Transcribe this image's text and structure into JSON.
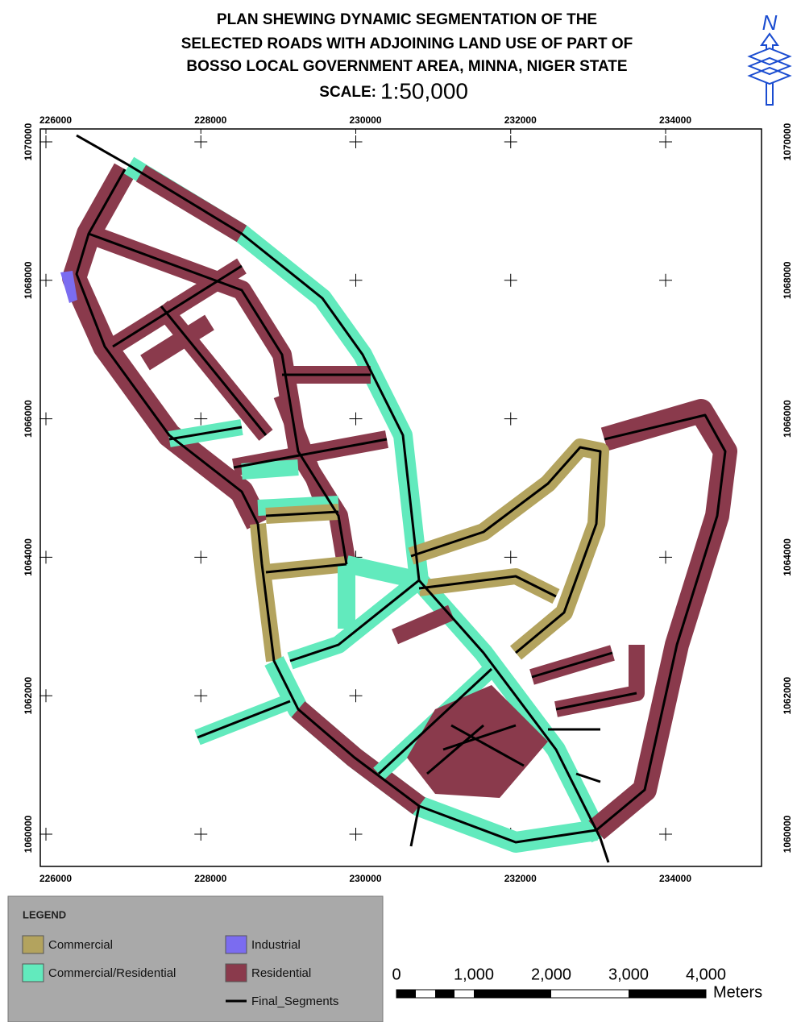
{
  "map": {
    "title_lines": [
      "PLAN SHEWING DYNAMIC SEGMENTATION OF THE",
      "SELECTED ROADS WITH ADJOINING LAND USE OF PART OF",
      "BOSSO LOCAL GOVERNMENT AREA, MINNA, NIGER STATE"
    ],
    "scale_label": "SCALE:",
    "scale_value": "1:50,000",
    "north": "N",
    "xticks": [
      226000,
      228000,
      230000,
      232000,
      234000
    ],
    "yticks": [
      1070000,
      1068000,
      1066000,
      1064000,
      1062000,
      1060000
    ],
    "legend": {
      "title": "LEGEND",
      "items": [
        {
          "name": "Commercial",
          "color": "#b3a35e"
        },
        {
          "name": "Industrial",
          "color": "#7b6cf0"
        },
        {
          "name": "Commercial/Residential",
          "color": "#62eabd"
        },
        {
          "name": "Residential",
          "color": "#8a3a4c"
        },
        {
          "name": "Final_Segments",
          "color": "#000000"
        }
      ]
    },
    "scalebar": {
      "ticks": [
        0,
        {
          "value": 1000,
          "label": "1,000"
        },
        {
          "value": 2000,
          "label": "2,000"
        },
        {
          "value": 3000,
          "label": "3,000"
        },
        {
          "value": 4000,
          "label": "4,000"
        }
      ],
      "unit": "Meters"
    }
  }
}
